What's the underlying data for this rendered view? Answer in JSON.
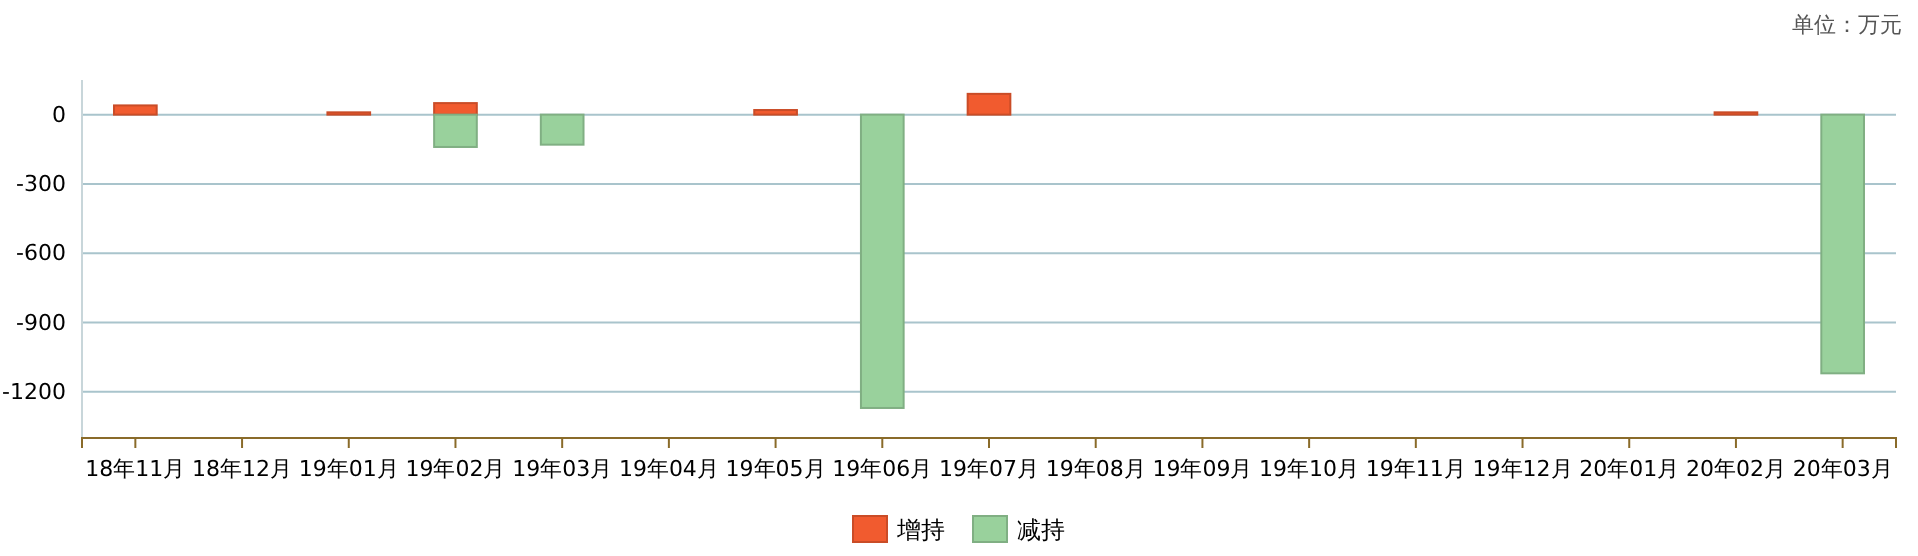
{
  "chart_data": {
    "type": "bar",
    "stacked": true,
    "categories": [
      "18年11月",
      "18年12月",
      "19年01月",
      "19年02月",
      "19年03月",
      "19年04月",
      "19年05月",
      "19年06月",
      "19年07月",
      "19年08月",
      "19年09月",
      "19年10月",
      "19年11月",
      "19年12月",
      "20年01月",
      "20年02月",
      "20年03月"
    ],
    "series": [
      {
        "name": "增持",
        "color": "#f15b2f",
        "values": [
          40,
          null,
          10,
          50,
          null,
          null,
          20,
          null,
          90,
          null,
          null,
          null,
          null,
          null,
          null,
          10,
          null
        ]
      },
      {
        "name": "减持",
        "color": "#99d19c",
        "values": [
          null,
          null,
          null,
          -140,
          -130,
          null,
          null,
          -1270,
          null,
          null,
          null,
          null,
          null,
          null,
          null,
          null,
          -1120
        ]
      }
    ],
    "ylim": [
      -1400,
      150
    ],
    "yticks": [
      -1200,
      -900,
      -600,
      -300,
      0
    ],
    "grid": "y",
    "legend": "bottom",
    "annotations": [
      "单位：万元"
    ]
  }
}
